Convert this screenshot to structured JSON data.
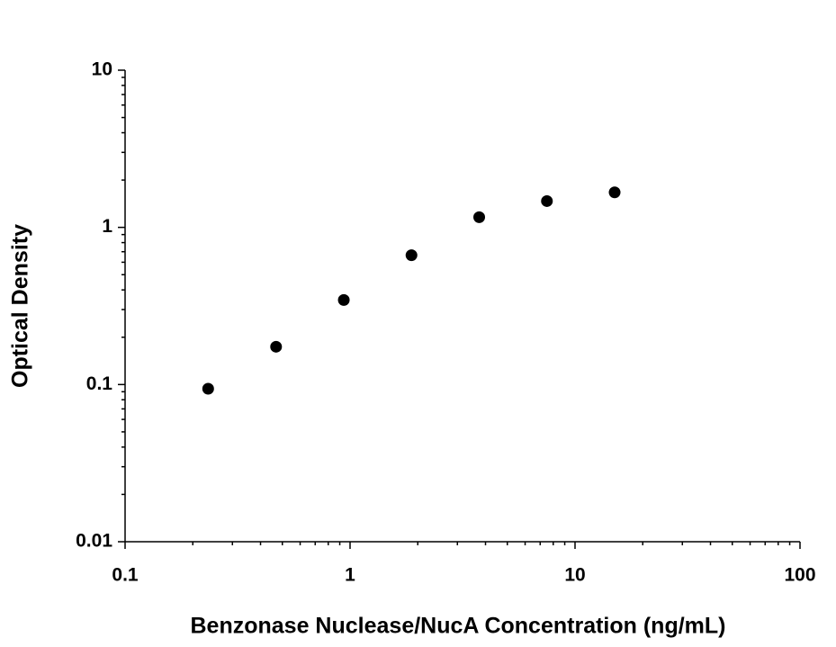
{
  "chart_data": {
    "type": "scatter",
    "xlabel": "Benzonase Nuclease/NucA Concentration (ng/mL)",
    "ylabel": "Optical Density",
    "x": [
      0.234,
      0.469,
      0.938,
      1.875,
      3.75,
      7.5,
      15
    ],
    "series": [
      {
        "color": "#000000",
        "values": [
          0.094,
          0.174,
          0.345,
          0.665,
          1.16,
          1.47,
          1.67
        ]
      }
    ],
    "xlim": [
      0.1,
      100
    ],
    "xticks": [
      0.1,
      1,
      10,
      100
    ],
    "ylim": [
      0.01,
      10
    ],
    "yticks": [
      0.01,
      0.1,
      1,
      10
    ],
    "xscale": "log",
    "yscale": "log",
    "grid": false
  }
}
